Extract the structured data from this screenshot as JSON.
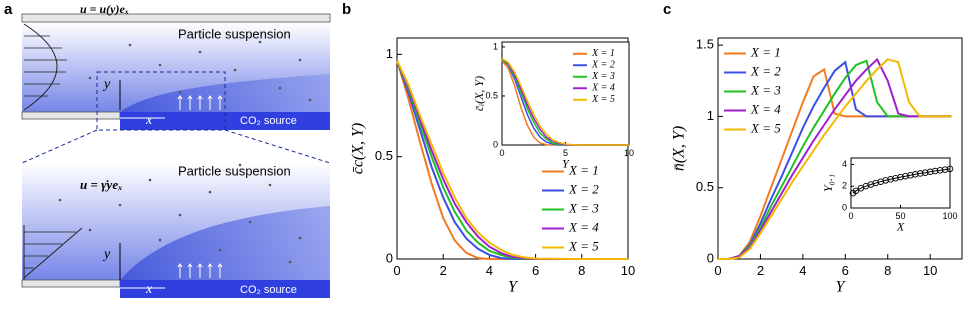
{
  "diagram": {
    "panel_label": "a",
    "top": {
      "velocity": "u = u(y)eₓ",
      "title": "Particle suspension",
      "y_axis": "y",
      "x_axis": "x",
      "source": "CO₂ source"
    },
    "bottom": {
      "velocity": "u = γ̇yeₓ",
      "title": "Particle suspension",
      "y_axis": "y",
      "x_axis": "x",
      "source": "CO₂ source"
    }
  },
  "chart_data": [
    {
      "type": "line",
      "panel_label": "b",
      "x_label": "Y",
      "y_label": "c̄c(X, Y)",
      "x": [
        0,
        0.5,
        1,
        1.5,
        2,
        2.5,
        3,
        3.5,
        4,
        4.5,
        5,
        5.5,
        6,
        8,
        10
      ],
      "series": [
        {
          "name": "X = 1",
          "color": "#f47a20",
          "values": [
            0.97,
            0.78,
            0.57,
            0.37,
            0.2,
            0.09,
            0.03,
            0.005,
            0,
            0,
            0,
            0,
            0,
            0,
            0
          ]
        },
        {
          "name": "X = 2",
          "color": "#3c50e6",
          "values": [
            0.97,
            0.81,
            0.63,
            0.45,
            0.3,
            0.18,
            0.1,
            0.05,
            0.02,
            0.005,
            0,
            0,
            0,
            0,
            0
          ]
        },
        {
          "name": "X = 3",
          "color": "#1fc21f",
          "values": [
            0.97,
            0.83,
            0.66,
            0.5,
            0.35,
            0.23,
            0.14,
            0.08,
            0.04,
            0.02,
            0.005,
            0,
            0,
            0,
            0
          ]
        },
        {
          "name": "X = 4",
          "color": "#a020d0",
          "values": [
            0.97,
            0.84,
            0.68,
            0.53,
            0.39,
            0.27,
            0.18,
            0.11,
            0.06,
            0.03,
            0.01,
            0.003,
            0,
            0,
            0
          ]
        },
        {
          "name": "X = 5",
          "color": "#f5b800",
          "values": [
            0.97,
            0.85,
            0.7,
            0.56,
            0.42,
            0.3,
            0.2,
            0.13,
            0.08,
            0.045,
            0.02,
            0.008,
            0.002,
            0,
            0
          ]
        }
      ],
      "xlim": [
        0,
        10
      ],
      "ylim": [
        0,
        1.08
      ],
      "xticks": [
        0,
        2,
        4,
        6,
        8,
        10
      ],
      "yticks": [
        0,
        0.5,
        1
      ],
      "legend": "lower right"
    },
    {
      "type": "line",
      "x_label": "Y",
      "y_label": "c̄ᵢ(X, Y)",
      "x": [
        0,
        0.5,
        1,
        1.5,
        2,
        2.5,
        3,
        3.5,
        4,
        4.5,
        5,
        5.5,
        6,
        8,
        10
      ],
      "series": [
        {
          "name": "X = 1",
          "color": "#f47a20",
          "values": [
            0.86,
            0.78,
            0.6,
            0.38,
            0.2,
            0.08,
            0.02,
            0.003,
            0,
            0,
            0,
            0,
            0,
            0,
            0
          ]
        },
        {
          "name": "X = 2",
          "color": "#3c50e6",
          "values": [
            0.87,
            0.81,
            0.67,
            0.49,
            0.31,
            0.17,
            0.08,
            0.03,
            0.01,
            0,
            0,
            0,
            0,
            0,
            0
          ]
        },
        {
          "name": "X = 3",
          "color": "#1fc21f",
          "values": [
            0.87,
            0.82,
            0.7,
            0.54,
            0.37,
            0.23,
            0.12,
            0.06,
            0.02,
            0.005,
            0,
            0,
            0,
            0,
            0
          ]
        },
        {
          "name": "X = 4",
          "color": "#a020d0",
          "values": [
            0.88,
            0.83,
            0.72,
            0.57,
            0.41,
            0.27,
            0.16,
            0.08,
            0.04,
            0.015,
            0.004,
            0,
            0,
            0,
            0
          ]
        },
        {
          "name": "X = 5",
          "color": "#f5b800",
          "values": [
            0.88,
            0.84,
            0.74,
            0.6,
            0.45,
            0.31,
            0.19,
            0.11,
            0.05,
            0.025,
            0.01,
            0.003,
            0,
            0,
            0
          ]
        }
      ],
      "xlim": [
        0,
        10
      ],
      "ylim": [
        0,
        1.05
      ],
      "xticks": [
        0,
        5,
        10
      ],
      "yticks": [
        0,
        0.5,
        1
      ],
      "legend": "upper right"
    },
    {
      "type": "line",
      "panel_label": "c",
      "x_label": "Y",
      "y_label": "n̄(X, Y)",
      "x": [
        0,
        0.5,
        1,
        1.5,
        2,
        2.5,
        3,
        3.5,
        4,
        4.5,
        5,
        5.5,
        6,
        6.5,
        7,
        7.5,
        8,
        8.5,
        9,
        9.5,
        10,
        10.5,
        11
      ],
      "series": [
        {
          "name": "X = 1",
          "color": "#f47a20",
          "values": [
            0,
            0,
            0.02,
            0.12,
            0.3,
            0.5,
            0.7,
            0.9,
            1.1,
            1.28,
            1.33,
            1.02,
            1,
            1,
            1,
            1,
            1,
            1,
            1,
            1,
            1,
            1,
            1
          ]
        },
        {
          "name": "X = 2",
          "color": "#3c50e6",
          "values": [
            0,
            0,
            0.02,
            0.1,
            0.25,
            0.42,
            0.58,
            0.75,
            0.92,
            1.07,
            1.2,
            1.32,
            1.38,
            1.05,
            1,
            1,
            1,
            1,
            1,
            1,
            1,
            1,
            1
          ]
        },
        {
          "name": "X = 3",
          "color": "#1fc21f",
          "values": [
            0,
            0,
            0.02,
            0.09,
            0.22,
            0.37,
            0.51,
            0.65,
            0.79,
            0.92,
            1.04,
            1.16,
            1.27,
            1.36,
            1.39,
            1.1,
            1,
            1,
            1,
            1,
            1,
            1,
            1
          ]
        },
        {
          "name": "X = 4",
          "color": "#a020d0",
          "values": [
            0,
            0,
            0.02,
            0.08,
            0.2,
            0.33,
            0.46,
            0.59,
            0.71,
            0.83,
            0.94,
            1.05,
            1.15,
            1.25,
            1.33,
            1.4,
            1.25,
            1.02,
            1,
            1,
            1,
            1,
            1
          ]
        },
        {
          "name": "X = 5",
          "color": "#f5b800",
          "values": [
            0,
            0,
            0.01,
            0.07,
            0.18,
            0.3,
            0.42,
            0.54,
            0.65,
            0.76,
            0.87,
            0.97,
            1.07,
            1.16,
            1.25,
            1.33,
            1.4,
            1.38,
            1.1,
            1,
            1,
            1,
            1
          ]
        }
      ],
      "xlim": [
        0,
        11.5
      ],
      "ylim": [
        0,
        1.55
      ],
      "xticks": [
        0,
        2,
        4,
        6,
        8,
        10
      ],
      "yticks": [
        0,
        0.5,
        1,
        1.5
      ],
      "legend": "upper left"
    },
    {
      "type": "scatter",
      "x_label": "X",
      "y_label": "Y₀.₁",
      "x": [
        2,
        5,
        10,
        15,
        20,
        25,
        30,
        35,
        40,
        45,
        50,
        55,
        60,
        65,
        70,
        75,
        80,
        85,
        90,
        95,
        100
      ],
      "series": [
        {
          "color": "#000000",
          "values": [
            1.37,
            1.58,
            1.82,
            2.01,
            2.16,
            2.3,
            2.42,
            2.54,
            2.64,
            2.74,
            2.84,
            2.93,
            3.01,
            3.1,
            3.18,
            3.25,
            3.33,
            3.4,
            3.47,
            3.53,
            3.6
          ]
        }
      ],
      "line": true,
      "xlim": [
        0,
        100
      ],
      "ylim": [
        0,
        4.6
      ],
      "xticks": [
        0,
        50,
        100
      ],
      "yticks": [
        0,
        2,
        4
      ]
    }
  ]
}
